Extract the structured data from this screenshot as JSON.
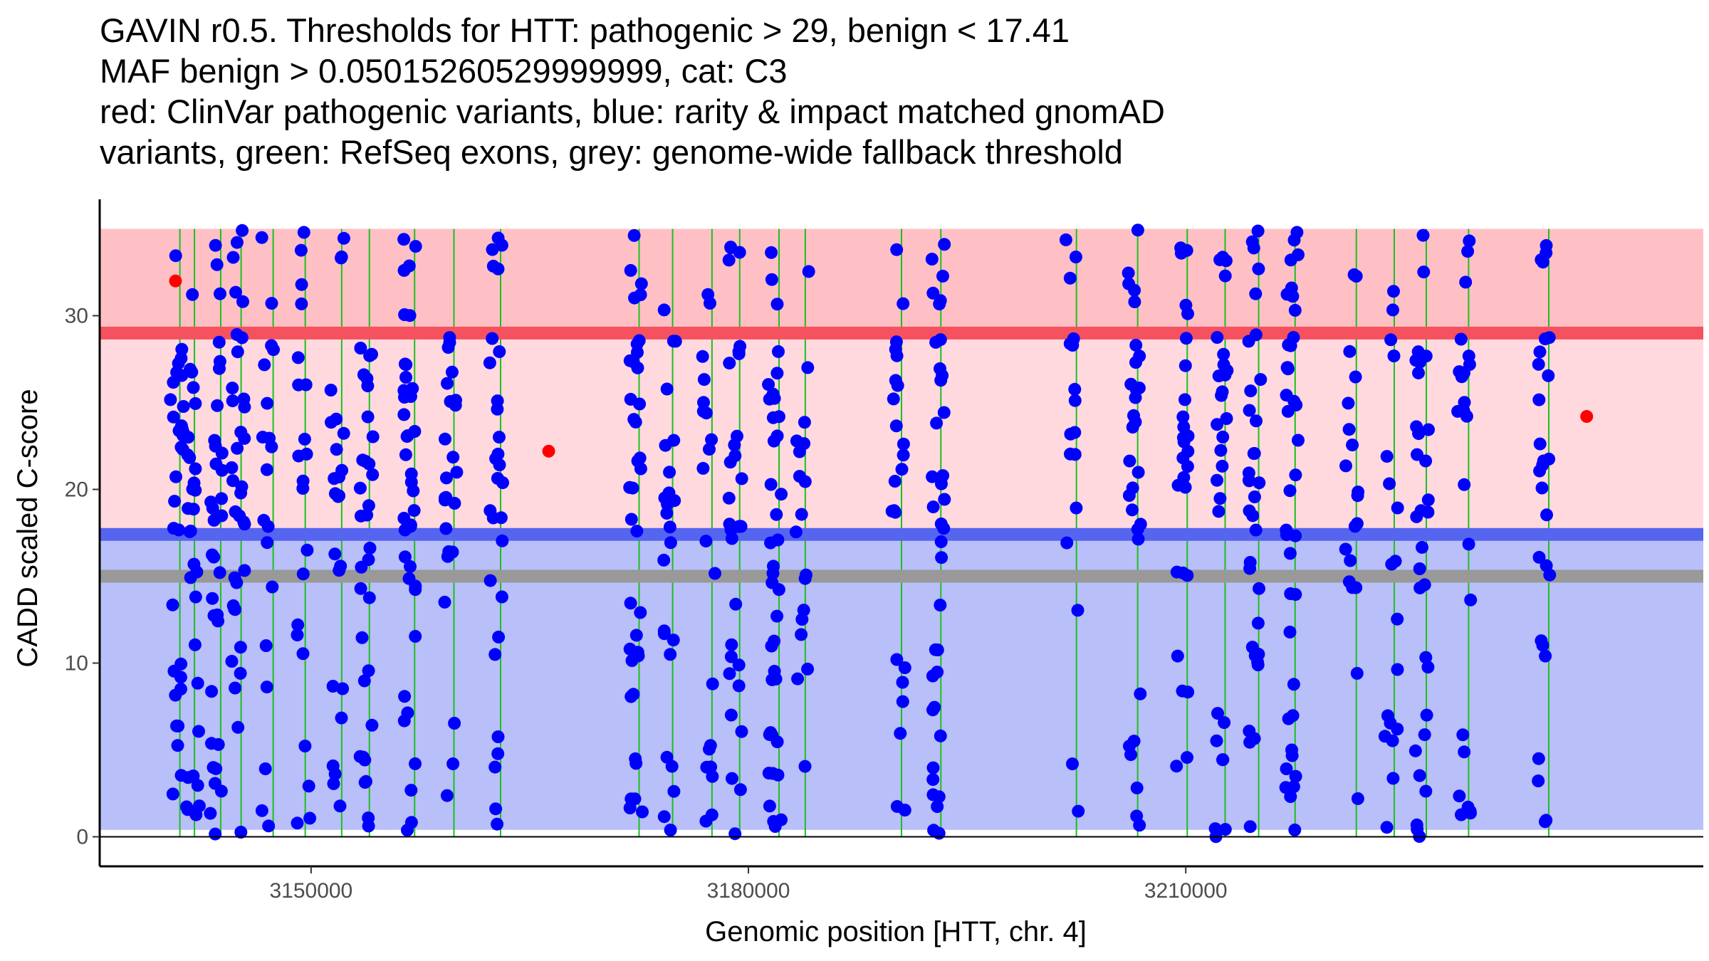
{
  "title_lines": [
    "GAVIN r0.5. Thresholds for HTT: pathogenic > 29, benign < 17.41",
    "MAF benign > 0.05015260529999999, cat: C3",
    "red: ClinVar pathogenic variants, blue: rarity & impact matched gnomAD",
    "variants, green: RefSeq exons, grey: genome-wide fallback threshold"
  ],
  "chart_data": {
    "type": "scatter",
    "title": "GAVIN r0.5. Thresholds for HTT: pathogenic > 29, benign < 17.41 / MAF benign > 0.05015260529999999, cat: C3",
    "xlabel": "Genomic position [HTT, chr. 4]",
    "ylabel": "CADD scaled C-score",
    "xlim": [
      3135500,
      3245500
    ],
    "ylim": [
      -1.7,
      36.7
    ],
    "x_ticks": [
      3150000,
      3180000,
      3210000
    ],
    "x_tick_labels": [
      "3150000",
      "3180000",
      "3210000"
    ],
    "y_ticks": [
      0,
      10,
      20,
      30
    ],
    "y_tick_labels": [
      "0",
      "10",
      "20",
      "30"
    ],
    "grid": false,
    "colors": {
      "pathogenic_zone": "#ffc0c5",
      "vus_zone": "#ffd9de",
      "benign_zone": "#b8bff9",
      "pathogenic_line": "#f5515f",
      "benign_line": "#5565ef",
      "fallback_line": "#999999",
      "exon_line": "#1dbf1d",
      "gnomad_point": "#0000ff",
      "clinvar_point": "#ff0000"
    },
    "zones": {
      "pathogenic": [
        29,
        35
      ],
      "vus": [
        17.41,
        29
      ],
      "benign": [
        0.4,
        17.41
      ]
    },
    "thresholds": {
      "pathogenic": 29,
      "benign": 17.41,
      "fallback": 15.0
    },
    "exons": [
      3141000,
      3142000,
      3143800,
      3145200,
      3147400,
      3149600,
      3152100,
      3154000,
      3157100,
      3159800,
      3163000,
      3172500,
      3174800,
      3177500,
      3179400,
      3182100,
      3183900,
      3190500,
      3193200,
      3202500,
      3206700,
      3210100,
      3212700,
      3215000,
      3217500,
      3221700,
      3224300,
      3226500,
      3229400,
      3234900
    ],
    "series": [
      {
        "name": "gnomAD",
        "x_positions": [
          3140800,
          3141900,
          3143500,
          3145000,
          3147000,
          3149500,
          3151800,
          3153800,
          3156800,
          3159600,
          3162700,
          3172300,
          3174600,
          3177300,
          3179100,
          3181800,
          3183700,
          3190300,
          3193000,
          3202200,
          3206500,
          3209800,
          3212400,
          3214700,
          3217300,
          3221400,
          3224100,
          3226200,
          3229100,
          3234600
        ]
      },
      {
        "name": "ClinVar pathogenic",
        "points": [
          [
            3140700,
            32.0
          ],
          [
            3166300,
            22.2
          ],
          [
            3237500,
            24.2
          ]
        ]
      }
    ]
  }
}
